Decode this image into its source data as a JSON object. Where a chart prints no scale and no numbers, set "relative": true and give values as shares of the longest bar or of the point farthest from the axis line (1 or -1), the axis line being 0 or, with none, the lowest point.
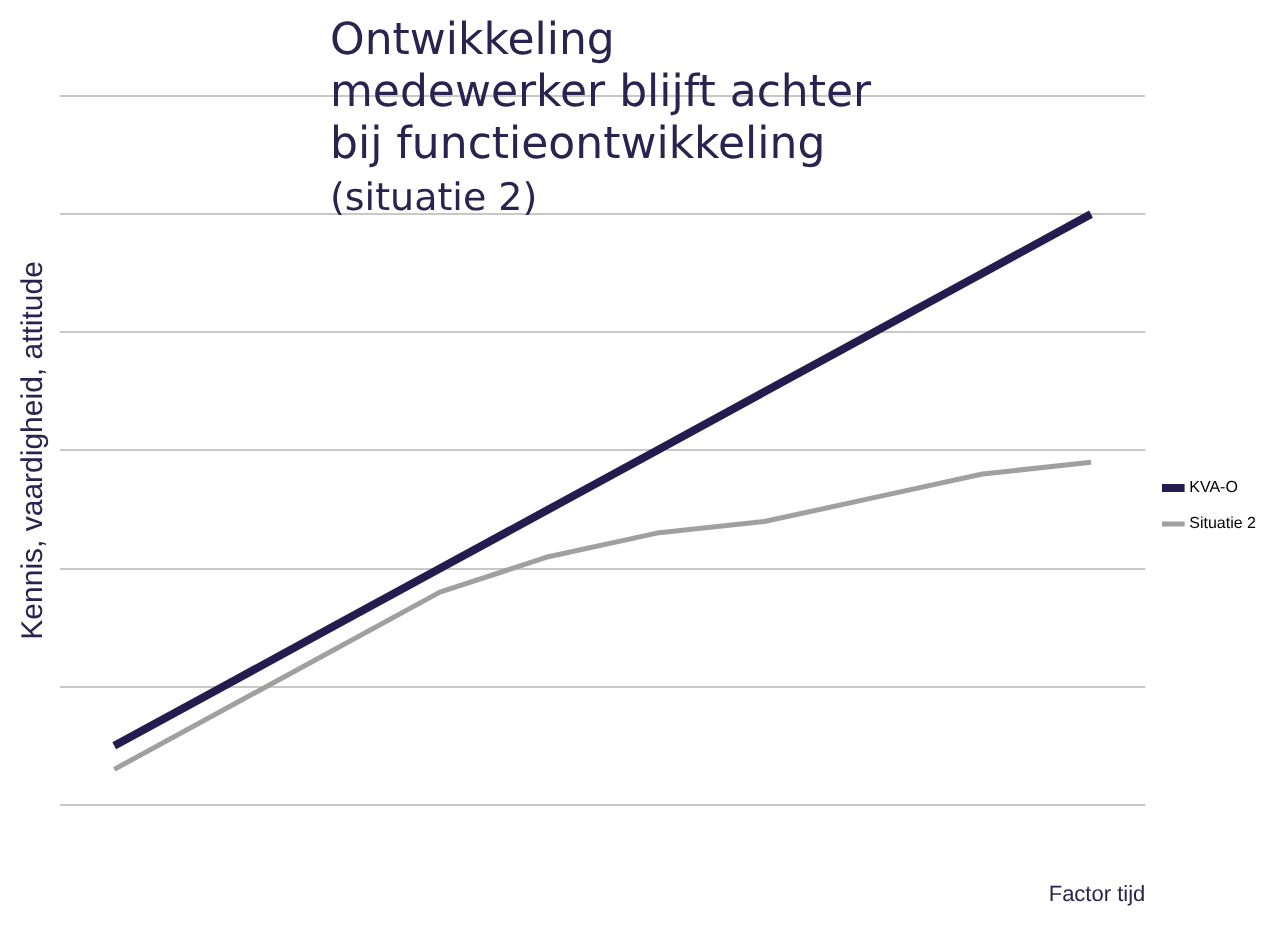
{
  "chart_data": {
    "type": "line",
    "title": "Ontwikkeling\nmedewerker blijft achter\nbij functieontwikkeling",
    "subtitle": "(situatie 2)",
    "xlabel": "Factor tijd",
    "ylabel": "Kennis, vaardigheid, attitude",
    "relative": true,
    "grid": "y",
    "legend": "right",
    "marker": "none",
    "categories": [
      null,
      null,
      null,
      null,
      null,
      null,
      null,
      null,
      null,
      null
    ],
    "series": [
      {
        "name": "KVA-O",
        "color": "#241c4e",
        "values": [
          0.1,
          0.2,
          0.3,
          0.4,
          0.5,
          0.6,
          0.7,
          0.8,
          0.9,
          1.0
        ]
      },
      {
        "name": "Situatie 2",
        "color": "#a0a0a0",
        "values": [
          0.06,
          0.16,
          0.26,
          0.36,
          0.42,
          0.46,
          0.48,
          0.52,
          0.56,
          0.58
        ]
      }
    ]
  }
}
